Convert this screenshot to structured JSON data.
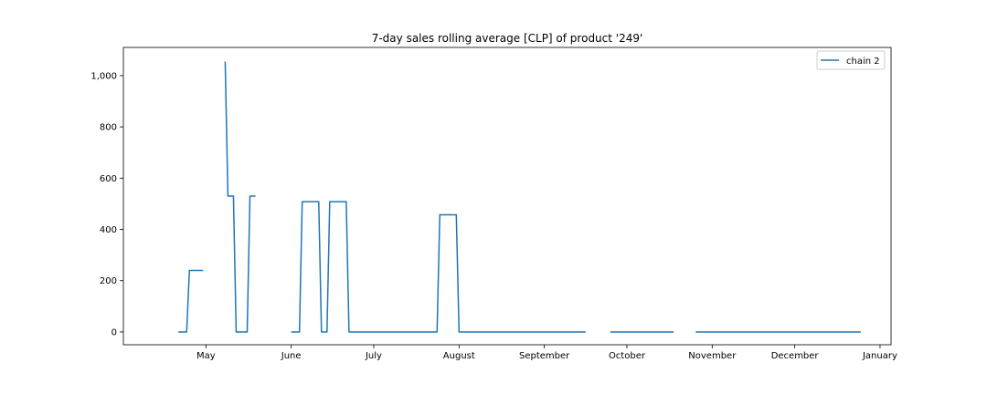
{
  "chart_data": {
    "type": "line",
    "title": "7-day sales rolling average [CLP] of product '249'",
    "xlabel": "",
    "ylabel": "",
    "x_type": "date",
    "xlim": [
      "2021-04-01",
      "2022-01-05"
    ],
    "ylim": [
      -50,
      1110
    ],
    "x_ticks": [
      {
        "date": "2021-05-01",
        "label": "May"
      },
      {
        "date": "2021-06-01",
        "label": "June"
      },
      {
        "date": "2021-07-01",
        "label": "July"
      },
      {
        "date": "2021-08-01",
        "label": "August"
      },
      {
        "date": "2021-09-01",
        "label": "September"
      },
      {
        "date": "2021-10-01",
        "label": "October"
      },
      {
        "date": "2021-11-01",
        "label": "November"
      },
      {
        "date": "2021-12-01",
        "label": "December"
      },
      {
        "date": "2022-01-01",
        "label": "January"
      }
    ],
    "y_ticks": [
      {
        "value": 0,
        "label": "0"
      },
      {
        "value": 200,
        "label": "200"
      },
      {
        "value": 400,
        "label": "400"
      },
      {
        "value": 600,
        "label": "600"
      },
      {
        "value": 800,
        "label": "800"
      },
      {
        "value": 1000,
        "label": "1,000"
      }
    ],
    "grid": false,
    "legend_position": "top-right",
    "series": [
      {
        "name": "chain 2",
        "color": "#1f77b4",
        "segments": [
          [
            {
              "x": "2021-04-21",
              "y": 0
            },
            {
              "x": "2021-04-24",
              "y": 0
            },
            {
              "x": "2021-04-25",
              "y": 240
            },
            {
              "x": "2021-04-30",
              "y": 240
            }
          ],
          [
            {
              "x": "2021-05-08",
              "y": 1055
            },
            {
              "x": "2021-05-09",
              "y": 530
            },
            {
              "x": "2021-05-11",
              "y": 530
            },
            {
              "x": "2021-05-12",
              "y": 0
            },
            {
              "x": "2021-05-16",
              "y": 0
            },
            {
              "x": "2021-05-17",
              "y": 530
            },
            {
              "x": "2021-05-19",
              "y": 530
            }
          ],
          [
            {
              "x": "2021-06-01",
              "y": 0
            },
            {
              "x": "2021-06-04",
              "y": 0
            },
            {
              "x": "2021-06-05",
              "y": 508
            },
            {
              "x": "2021-06-11",
              "y": 508
            },
            {
              "x": "2021-06-12",
              "y": 0
            },
            {
              "x": "2021-06-14",
              "y": 0
            },
            {
              "x": "2021-06-15",
              "y": 508
            },
            {
              "x": "2021-06-21",
              "y": 508
            },
            {
              "x": "2021-06-22",
              "y": 0
            },
            {
              "x": "2021-07-24",
              "y": 0
            },
            {
              "x": "2021-07-25",
              "y": 457
            },
            {
              "x": "2021-07-31",
              "y": 457
            },
            {
              "x": "2021-08-01",
              "y": 0
            },
            {
              "x": "2021-09-16",
              "y": 0
            }
          ],
          [
            {
              "x": "2021-09-25",
              "y": 0
            },
            {
              "x": "2021-10-18",
              "y": 0
            }
          ],
          [
            {
              "x": "2021-10-26",
              "y": 0
            },
            {
              "x": "2021-12-25",
              "y": 0
            }
          ]
        ]
      }
    ]
  }
}
